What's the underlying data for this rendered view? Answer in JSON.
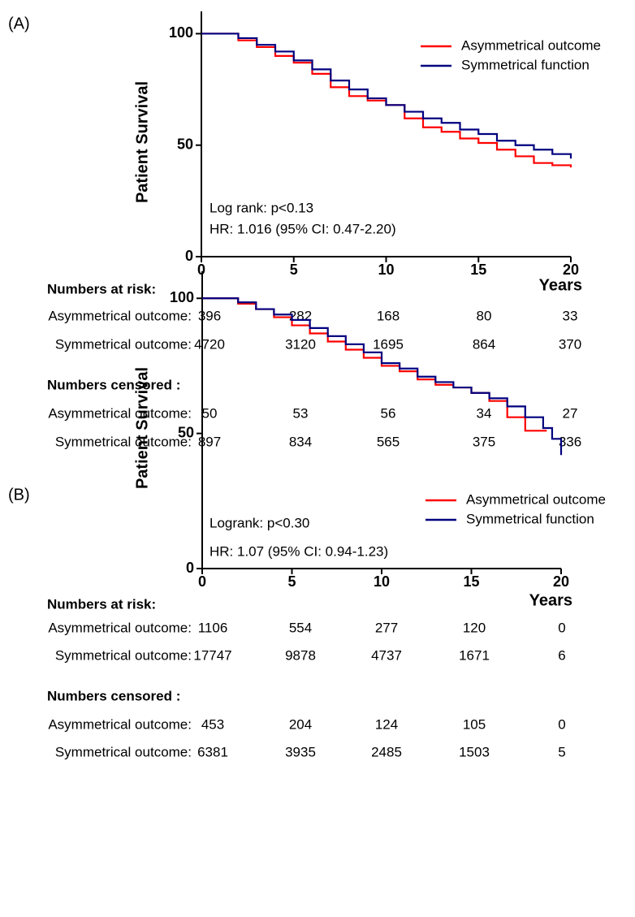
{
  "chart_data": [
    {
      "type": "step",
      "panel_label": "(A)",
      "ylabel": "Patient Survival",
      "xlabel": "Years",
      "xlim": [
        0,
        20
      ],
      "xticks": [
        0,
        5,
        10,
        15,
        20
      ],
      "ylim": [
        0,
        110
      ],
      "yticks": [
        0,
        50,
        100
      ],
      "legend": "top-right",
      "series": [
        {
          "name": "Asymmetrical outcome",
          "color": "#ff0000",
          "x": [
            0,
            1,
            2,
            3,
            4,
            5,
            6,
            7,
            8,
            9,
            10,
            11,
            12,
            13,
            14,
            15,
            16,
            17,
            18,
            19,
            20
          ],
          "values": [
            100,
            100,
            97,
            94,
            90,
            87,
            82,
            76,
            72,
            70,
            68,
            62,
            58,
            56,
            53,
            51,
            48,
            45,
            42,
            41,
            40
          ]
        },
        {
          "name": "Symmetrical function",
          "color": "#000080",
          "x": [
            0,
            1,
            2,
            3,
            4,
            5,
            6,
            7,
            8,
            9,
            10,
            11,
            12,
            13,
            14,
            15,
            16,
            17,
            18,
            19,
            20
          ],
          "values": [
            100,
            100,
            98,
            95,
            92,
            88,
            84,
            79,
            75,
            71,
            68,
            65,
            62,
            60,
            57,
            55,
            52,
            50,
            48,
            46,
            44
          ]
        }
      ],
      "annotations": [
        "Log rank: p<0.13",
        "HR: 1.016 (95% CI: 0.47-2.20)"
      ],
      "risk_table": {
        "title": "Numbers at risk:",
        "rows": [
          {
            "label": "Asymmetrical outcome:",
            "values": [
              396,
              282,
              168,
              80,
              33
            ]
          },
          {
            "label": "Symmetrical outcome:",
            "values": [
              4720,
              3120,
              1695,
              864,
              370
            ]
          }
        ]
      },
      "censored_table": {
        "title": "Numbers censored :",
        "rows": [
          {
            "label": "Asymmetrical outcome:",
            "values": [
              50,
              53,
              56,
              34,
              27
            ]
          },
          {
            "label": "Symmetrical outcome:",
            "values": [
              897,
              834,
              565,
              375,
              336
            ]
          }
        ]
      }
    },
    {
      "type": "step",
      "panel_label": "(B)",
      "ylabel": "Patient Survival",
      "xlabel": "Years",
      "xlim": [
        0,
        20
      ],
      "xticks": [
        0,
        5,
        10,
        15,
        20
      ],
      "ylim": [
        0,
        110
      ],
      "yticks": [
        0,
        50,
        100
      ],
      "legend": "top-right",
      "series": [
        {
          "name": "Asymmetrical outcome",
          "color": "#ff0000",
          "x": [
            0,
            1,
            2,
            3,
            4,
            5,
            6,
            7,
            8,
            9,
            10,
            11,
            12,
            13,
            14,
            15,
            16,
            17,
            18,
            19,
            19.2
          ],
          "values": [
            100,
            100,
            98,
            96,
            93,
            90,
            87,
            84,
            81,
            78,
            75,
            73,
            70,
            68,
            67,
            65,
            62,
            56,
            51,
            51,
            51
          ]
        },
        {
          "name": "Symmetrical function",
          "color": "#000080",
          "x": [
            0,
            1,
            2,
            3,
            4,
            5,
            6,
            7,
            8,
            9,
            10,
            11,
            12,
            13,
            14,
            15,
            16,
            17,
            18,
            19,
            19.5,
            20,
            20
          ],
          "values": [
            100,
            100,
            98.5,
            96,
            94,
            92,
            89,
            86,
            83,
            80,
            76,
            74,
            71,
            69,
            67,
            65,
            63,
            60,
            56,
            52,
            48,
            48,
            42
          ]
        }
      ],
      "annotations": [
        "Logrank: p<0.30",
        "HR: 1.07 (95% CI: 0.94-1.23)"
      ],
      "risk_table": {
        "title": "Numbers at risk:",
        "rows": [
          {
            "label": "Asymmetrical outcome:",
            "values": [
              1106,
              554,
              277,
              120,
              0
            ]
          },
          {
            "label": "Symmetrical outcome:",
            "values": [
              17747,
              9878,
              4737,
              1671,
              6
            ]
          }
        ]
      },
      "censored_table": {
        "title": "Numbers censored :",
        "rows": [
          {
            "label": "Asymmetrical outcome:",
            "values": [
              453,
              204,
              124,
              105,
              0
            ]
          },
          {
            "label": "Symmetrical outcome:",
            "values": [
              6381,
              3935,
              2485,
              1503,
              5
            ]
          }
        ]
      }
    }
  ]
}
